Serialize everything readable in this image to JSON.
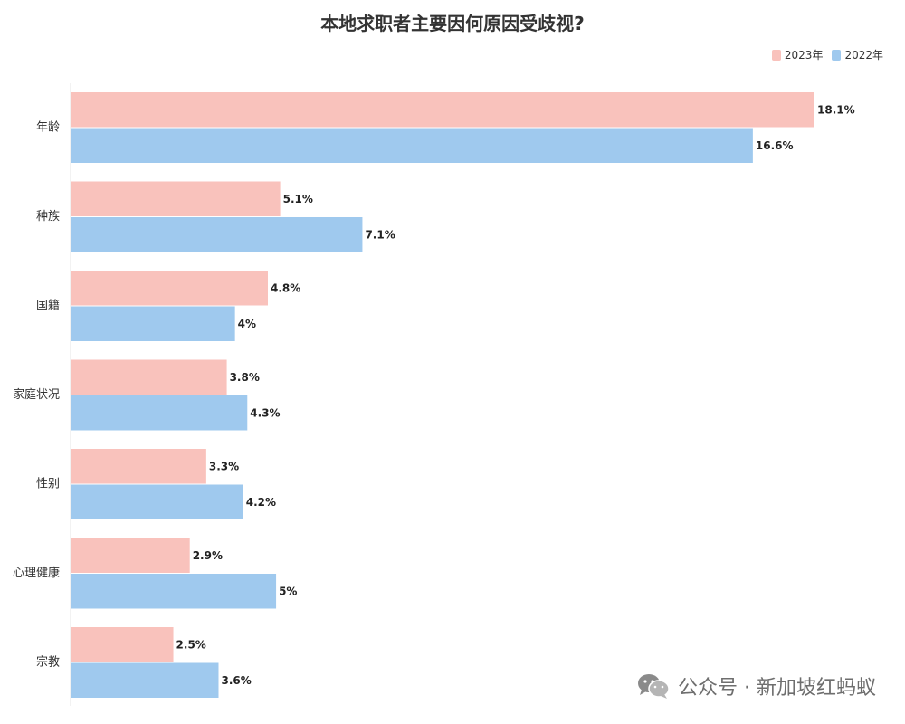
{
  "chart_data": {
    "type": "bar",
    "orientation": "horizontal",
    "title": "本地求职者主要因何原因受歧视?",
    "categories": [
      "年龄",
      "种族",
      "国籍",
      "家庭状况",
      "性别",
      "心理健康",
      "宗教"
    ],
    "series": [
      {
        "name": "2023年",
        "color": "#f9c2bc",
        "values": [
          18.1,
          5.1,
          4.8,
          3.8,
          3.3,
          2.9,
          2.5
        ],
        "labels": [
          "18.1%",
          "5.1%",
          "4.8%",
          "3.8%",
          "3.3%",
          "2.9%",
          "2.5%"
        ]
      },
      {
        "name": "2022年",
        "color": "#9fc9ee",
        "values": [
          16.6,
          7.1,
          4,
          4.3,
          4.2,
          5,
          3.6
        ],
        "labels": [
          "16.6%",
          "7.1%",
          "4%",
          "4.3%",
          "4.2%",
          "5%",
          "3.6%"
        ]
      }
    ],
    "xlim": [
      0,
      18.1
    ],
    "legend": "top-right",
    "grid": false
  },
  "watermark": {
    "text": "公众号 · 新加坡红蚂蚁",
    "icon": "wechat-icon"
  }
}
